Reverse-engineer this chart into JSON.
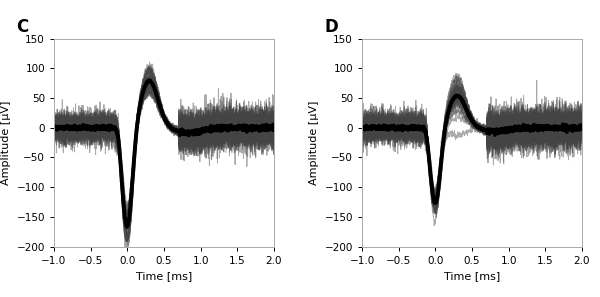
{
  "panel_C_label": "C",
  "panel_D_label": "D",
  "xlabel": "Time [ms]",
  "ylabel": "Amplitude [µV]",
  "xlim": [
    -1.0,
    2.0
  ],
  "ylim": [
    -200,
    150
  ],
  "yticks": [
    -200,
    -150,
    -100,
    -50,
    0,
    50,
    100,
    150
  ],
  "xticks": [
    -1.0,
    -0.5,
    0.0,
    0.5,
    1.0,
    1.5,
    2.0
  ],
  "n_spikes_C": 40,
  "n_spikes_D": 40,
  "seed_C": 7,
  "seed_D": 13,
  "thin_alpha": 0.45,
  "thin_lw": 0.7,
  "mean_lw": 2.8,
  "mean_color": "#000000",
  "thin_color": "#444444",
  "background_color": "#ffffff",
  "label_fontsize": 8,
  "tick_fontsize": 7.5,
  "panel_fontsize": 12,
  "C_trough_mean": -175,
  "C_trough_std": 18,
  "C_peak_mean": 80,
  "C_peak_std": 15,
  "D_trough_mean": -130,
  "D_trough_std": 12,
  "D_peak_mean": 55,
  "D_peak_std": 15
}
